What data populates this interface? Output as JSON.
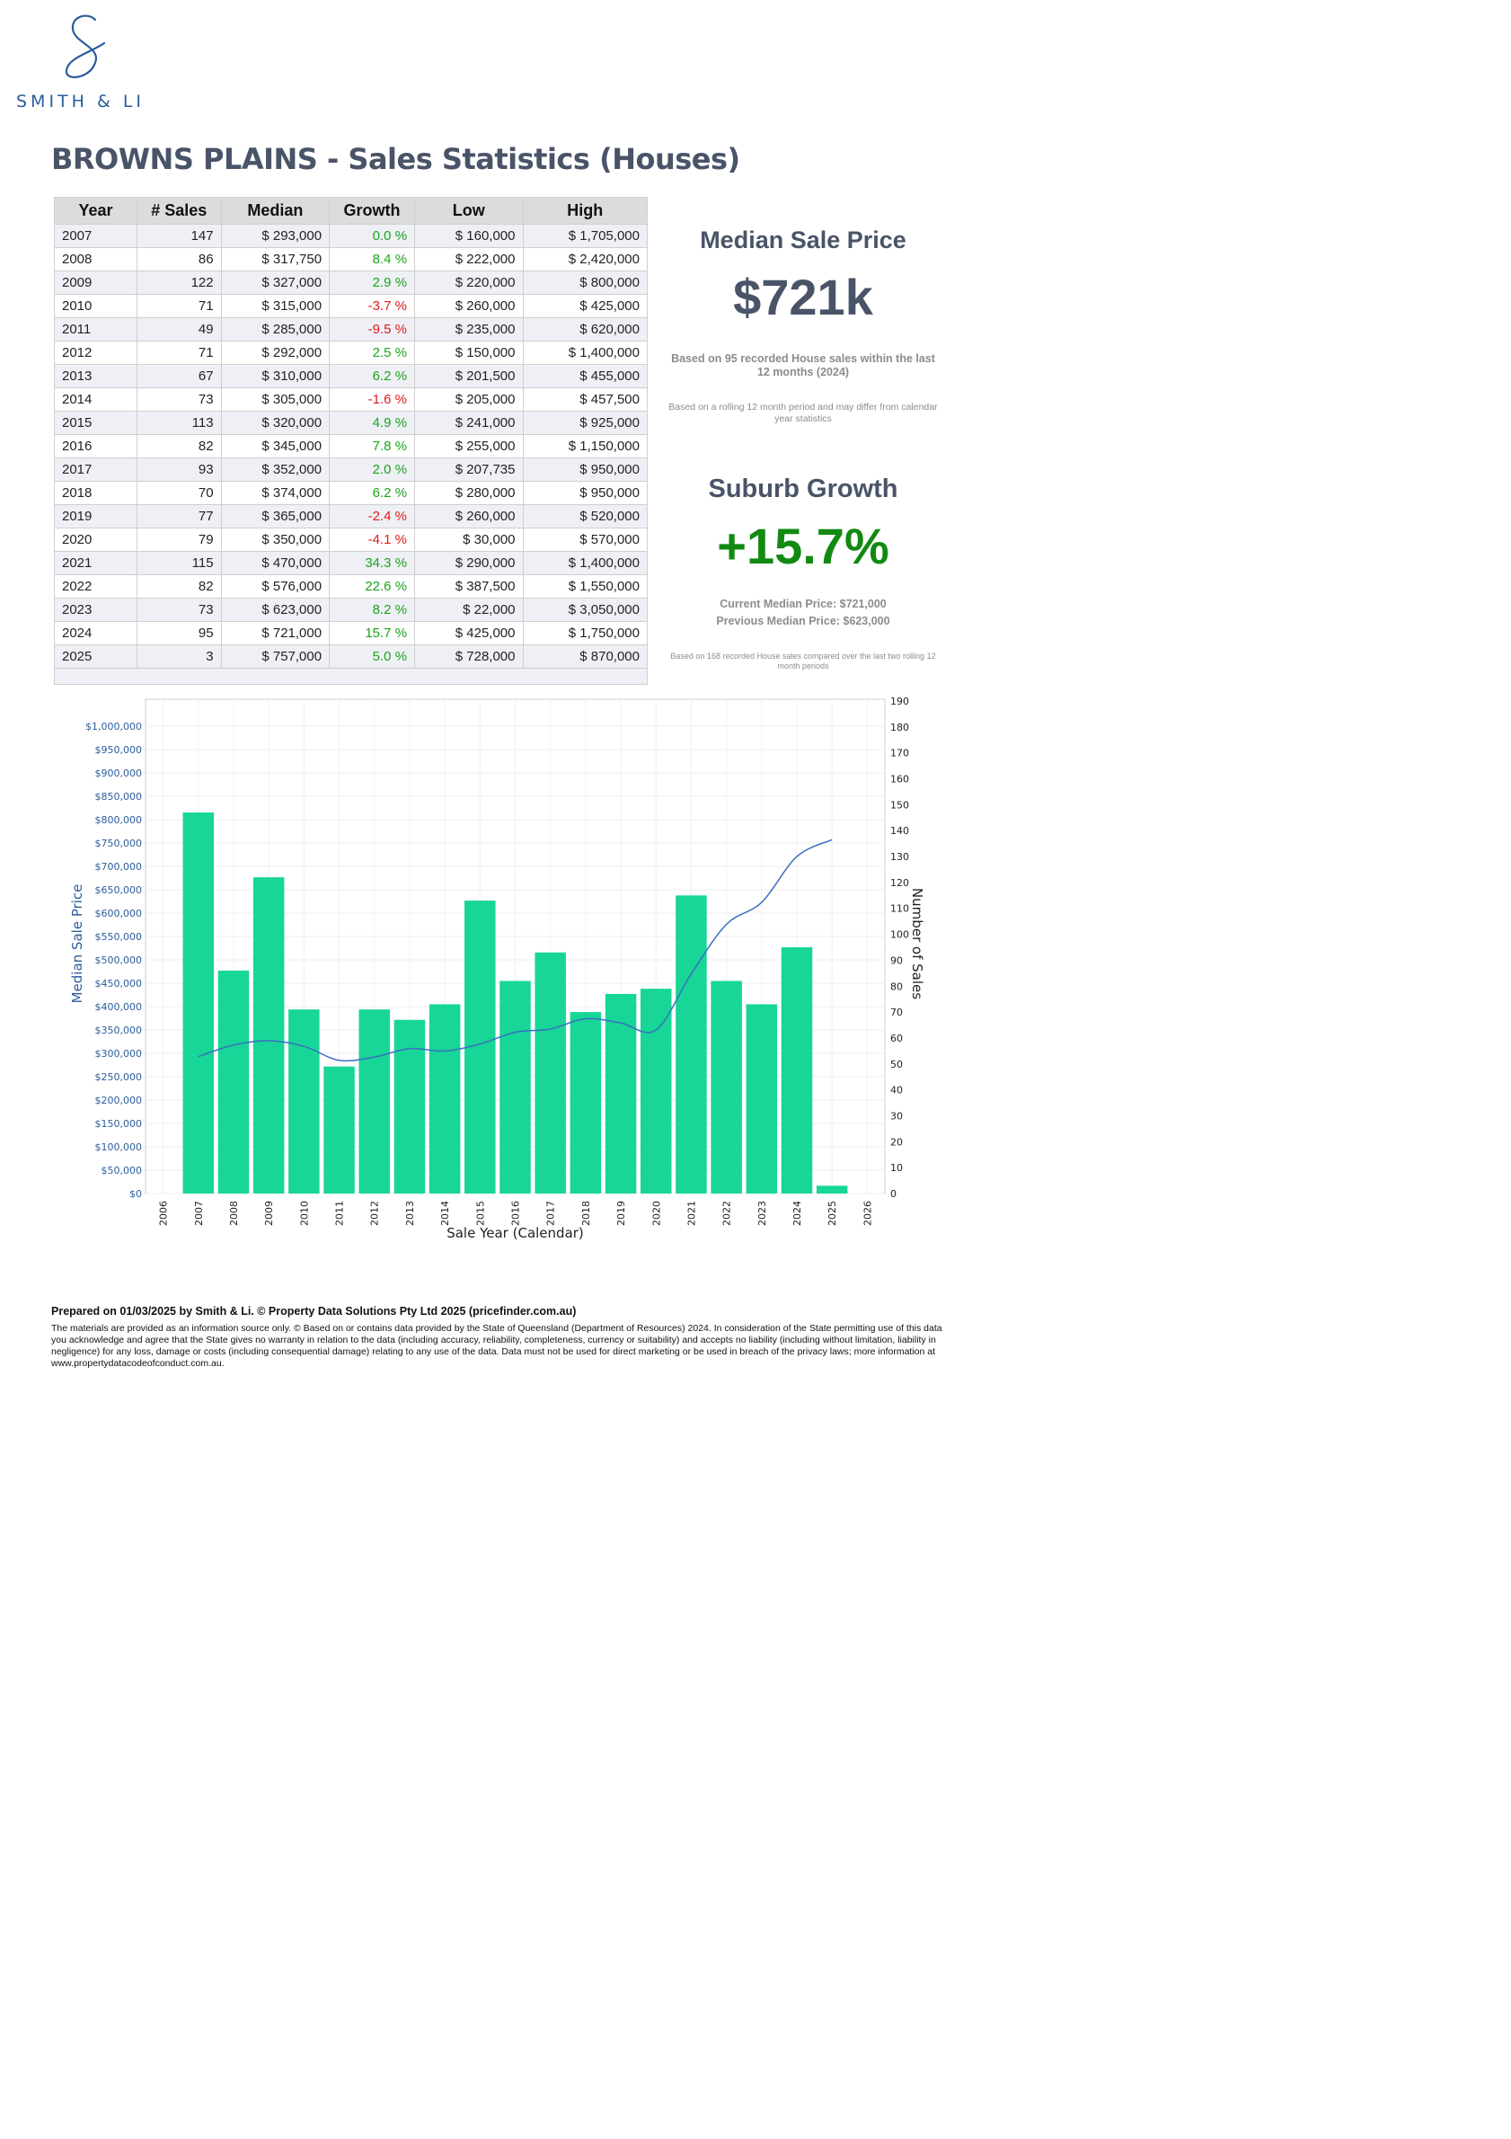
{
  "brand": {
    "name": "SMITH & LI"
  },
  "page_title": "BROWNS PLAINS - Sales Statistics (Houses)",
  "table": {
    "headers": [
      "Year",
      "# Sales",
      "Median",
      "Growth",
      "Low",
      "High"
    ],
    "rows": [
      [
        "2007",
        "147",
        "$ 293,000",
        "0.0 %",
        "$ 160,000",
        "$ 1,705,000"
      ],
      [
        "2008",
        "86",
        "$ 317,750",
        "8.4 %",
        "$ 222,000",
        "$ 2,420,000"
      ],
      [
        "2009",
        "122",
        "$ 327,000",
        "2.9 %",
        "$ 220,000",
        "$ 800,000"
      ],
      [
        "2010",
        "71",
        "$ 315,000",
        "-3.7 %",
        "$ 260,000",
        "$ 425,000"
      ],
      [
        "2011",
        "49",
        "$ 285,000",
        "-9.5 %",
        "$ 235,000",
        "$ 620,000"
      ],
      [
        "2012",
        "71",
        "$ 292,000",
        "2.5 %",
        "$ 150,000",
        "$ 1,400,000"
      ],
      [
        "2013",
        "67",
        "$ 310,000",
        "6.2 %",
        "$ 201,500",
        "$ 455,000"
      ],
      [
        "2014",
        "73",
        "$ 305,000",
        "-1.6 %",
        "$ 205,000",
        "$ 457,500"
      ],
      [
        "2015",
        "113",
        "$ 320,000",
        "4.9 %",
        "$ 241,000",
        "$ 925,000"
      ],
      [
        "2016",
        "82",
        "$ 345,000",
        "7.8 %",
        "$ 255,000",
        "$ 1,150,000"
      ],
      [
        "2017",
        "93",
        "$ 352,000",
        "2.0 %",
        "$ 207,735",
        "$ 950,000"
      ],
      [
        "2018",
        "70",
        "$ 374,000",
        "6.2 %",
        "$ 280,000",
        "$ 950,000"
      ],
      [
        "2019",
        "77",
        "$ 365,000",
        "-2.4 %",
        "$ 260,000",
        "$ 520,000"
      ],
      [
        "2020",
        "79",
        "$ 350,000",
        "-4.1 %",
        "$ 30,000",
        "$ 570,000"
      ],
      [
        "2021",
        "115",
        "$ 470,000",
        "34.3 %",
        "$ 290,000",
        "$ 1,400,000"
      ],
      [
        "2022",
        "82",
        "$ 576,000",
        "22.6 %",
        "$ 387,500",
        "$ 1,550,000"
      ],
      [
        "2023",
        "73",
        "$ 623,000",
        "8.2 %",
        "$ 22,000",
        "$ 3,050,000"
      ],
      [
        "2024",
        "95",
        "$ 721,000",
        "15.7 %",
        "$ 425,000",
        "$ 1,750,000"
      ],
      [
        "2025",
        "3",
        "$ 757,000",
        "5.0 %",
        "$ 728,000",
        "$ 870,000"
      ]
    ]
  },
  "median": {
    "heading": "Median Sale Price",
    "value": "$721k",
    "note": "Based on 95 recorded House sales within the last 12 months (2024)",
    "note2": "Based on a rolling 12 month period and may differ from calendar year statistics"
  },
  "growth": {
    "heading": "Suburb Growth",
    "value": "+15.7%",
    "current": "Current Median Price: $721,000",
    "previous": "Previous Median Price: $623,000",
    "note": "Based on 168 recorded House sales compared over the last two rolling 12 month periods"
  },
  "colors": {
    "bar": "#17d697",
    "line": "#3b6fbf",
    "positive": "#1aa51a",
    "negative": "#e01b1b",
    "heading": "#4a5468"
  },
  "chart_data": {
    "type": "bar",
    "xlabel": "Sale Year (Calendar)",
    "ylabel": "Median Sale Price",
    "y2label": "Number of Sales",
    "x_ticks": [
      "2006",
      "2007",
      "2008",
      "2009",
      "2010",
      "2011",
      "2012",
      "2013",
      "2014",
      "2015",
      "2016",
      "2017",
      "2018",
      "2019",
      "2020",
      "2021",
      "2022",
      "2023",
      "2024",
      "2025",
      "2026"
    ],
    "y_ticks": [
      "$0",
      "$50,000",
      "$100,000",
      "$150,000",
      "$200,000",
      "$250,000",
      "$300,000",
      "$350,000",
      "$400,000",
      "$450,000",
      "$500,000",
      "$550,000",
      "$600,000",
      "$650,000",
      "$700,000",
      "$750,000",
      "$800,000",
      "$850,000",
      "$900,000",
      "$950,000",
      "$1,000,000"
    ],
    "y2_ticks": [
      "0",
      "10",
      "20",
      "30",
      "40",
      "50",
      "60",
      "70",
      "80",
      "90",
      "100",
      "110",
      "120",
      "130",
      "140",
      "150",
      "160",
      "170",
      "180",
      "190"
    ],
    "xlim": [
      2005.5,
      2026.5
    ],
    "ylim": [
      0,
      1000000
    ],
    "y2lim": [
      0,
      190
    ],
    "grid": true,
    "categories": [
      "2007",
      "2008",
      "2009",
      "2010",
      "2011",
      "2012",
      "2013",
      "2014",
      "2015",
      "2016",
      "2017",
      "2018",
      "2019",
      "2020",
      "2021",
      "2022",
      "2023",
      "2024",
      "2025"
    ],
    "series": [
      {
        "name": "Number of Sales",
        "type": "bar",
        "axis": "right",
        "values": [
          147,
          86,
          122,
          71,
          49,
          71,
          67,
          73,
          113,
          82,
          93,
          70,
          77,
          79,
          115,
          82,
          73,
          95,
          3
        ]
      },
      {
        "name": "Median Sale Price",
        "type": "line",
        "axis": "left",
        "values": [
          293000,
          317750,
          327000,
          315000,
          285000,
          292000,
          310000,
          305000,
          320000,
          345000,
          352000,
          374000,
          365000,
          350000,
          470000,
          576000,
          623000,
          721000,
          757000
        ]
      }
    ]
  },
  "footer": {
    "prepared": "Prepared on 01/03/2025 by Smith & Li. © Property Data Solutions Pty Ltd 2025 (pricefinder.com.au)",
    "disclaimer": "The materials are provided as an information source only.  © Based on or contains data provided by the State of Queensland (Department of Resources) 2024. In consideration of the State permitting use of this data you acknowledge and agree that the State gives no warranty in relation to the data (including accuracy, reliability, completeness, currency or suitability) and accepts no liability (including without limitation, liability in negligence) for any loss, damage or costs (including consequential damage) relating to any use of the data. Data must not be used for direct marketing or be used in breach of the privacy laws; more information at www.propertydatacodeofconduct.com.au."
  }
}
